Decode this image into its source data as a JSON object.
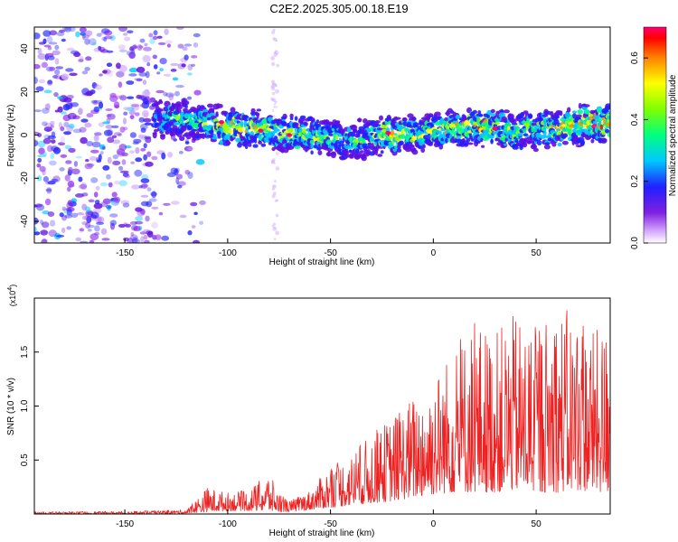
{
  "figure": {
    "title": "C2E2.2025.305.00.18.E19"
  },
  "chart_data": [
    {
      "type": "heatmap",
      "title": "C2E2.2025.305.00.18.E19",
      "xlabel": "Height of straight line (km)",
      "ylabel": "Frequency (Hz)",
      "xlim": [
        -194,
        86
      ],
      "ylim": [
        -50,
        50
      ],
      "x_ticks": [
        -150,
        -100,
        -50,
        0,
        50
      ],
      "y_ticks": [
        -40,
        -20,
        0,
        20,
        40
      ],
      "x_tick_labels": [
        "-150",
        "-100",
        "-50",
        "0",
        "50"
      ],
      "y_tick_labels": [
        "-40",
        "-20",
        "0",
        "20",
        "40"
      ],
      "colorbar": {
        "label": "Normalized spectral amplitude",
        "range": [
          0.0,
          0.7
        ],
        "ticks": [
          0.0,
          0.2,
          0.4,
          0.6
        ],
        "tick_labels": [
          "0.0",
          "0.2",
          "0.4",
          "0.6"
        ],
        "colormap": "rainbow",
        "scale_colors": [
          "#ffffff",
          "#a050f0",
          "#2020ff",
          "#00d0ff",
          "#00ff80",
          "#80ff00",
          "#ffff00",
          "#ff8000",
          "#ff0000",
          "#ff0080"
        ]
      },
      "ridge": {
        "name": "",
        "x": [
          -136,
          -120,
          -110,
          -100,
          -90,
          -80,
          -70,
          -60,
          -50,
          -40,
          -30,
          -20,
          -10,
          0,
          10,
          20,
          30,
          40,
          50,
          60,
          70,
          86
        ],
        "frequency_center": [
          8,
          7,
          5,
          4,
          3,
          2,
          1,
          0,
          -2,
          -3,
          -1,
          0,
          1,
          2,
          3,
          4,
          3,
          2,
          2,
          3,
          4,
          6
        ],
        "strength": [
          0.25,
          0.3,
          0.35,
          0.45,
          0.4,
          0.42,
          0.4,
          0.38,
          0.35,
          0.3,
          0.32,
          0.5,
          0.38,
          0.4,
          0.42,
          0.45,
          0.4,
          0.38,
          0.36,
          0.4,
          0.45,
          0.5
        ]
      },
      "noise_region": {
        "x_range": [
          -194,
          -120
        ],
        "level": 0.05
      },
      "grid": false
    },
    {
      "type": "line",
      "title": "",
      "xlabel": "Height of straight line (km)",
      "ylabel": "SNR (10 * v/v)",
      "y_multiplier_label": "(x10",
      "y_multiplier_exp": "4",
      "xlim": [
        -194,
        86
      ],
      "ylim": [
        0,
        2.0
      ],
      "x_ticks": [
        -150,
        -100,
        -50,
        0,
        50
      ],
      "y_ticks": [
        0.5,
        1.0,
        1.5
      ],
      "x_tick_labels": [
        "-150",
        "-100",
        "-50",
        "0",
        "50"
      ],
      "y_tick_labels": [
        "0.5",
        "1.0",
        "1.5"
      ],
      "series": [
        {
          "name": "",
          "color": "#ee2222",
          "envelope_x": [
            -194,
            -150,
            -120,
            -110,
            -100,
            -90,
            -80,
            -75,
            -70,
            -60,
            -50,
            -40,
            -30,
            -20,
            -10,
            0,
            10,
            20,
            30,
            40,
            50,
            60,
            70,
            80,
            86
          ],
          "envelope_max": [
            0.02,
            0.025,
            0.04,
            0.25,
            0.2,
            0.22,
            0.38,
            0.2,
            0.12,
            0.22,
            0.45,
            0.55,
            0.75,
            0.9,
            1.1,
            1.3,
            1.55,
            1.8,
            1.7,
            1.85,
            1.75,
            1.95,
            1.85,
            1.7,
            1.8
          ],
          "floor": [
            0.0,
            0.0,
            0.005,
            0.02,
            0.03,
            0.03,
            0.03,
            0.02,
            0.02,
            0.04,
            0.06,
            0.08,
            0.1,
            0.12,
            0.15,
            0.18,
            0.2,
            0.2,
            0.2,
            0.22,
            0.2,
            0.2,
            0.22,
            0.2,
            0.2
          ]
        }
      ],
      "grid": false
    }
  ]
}
